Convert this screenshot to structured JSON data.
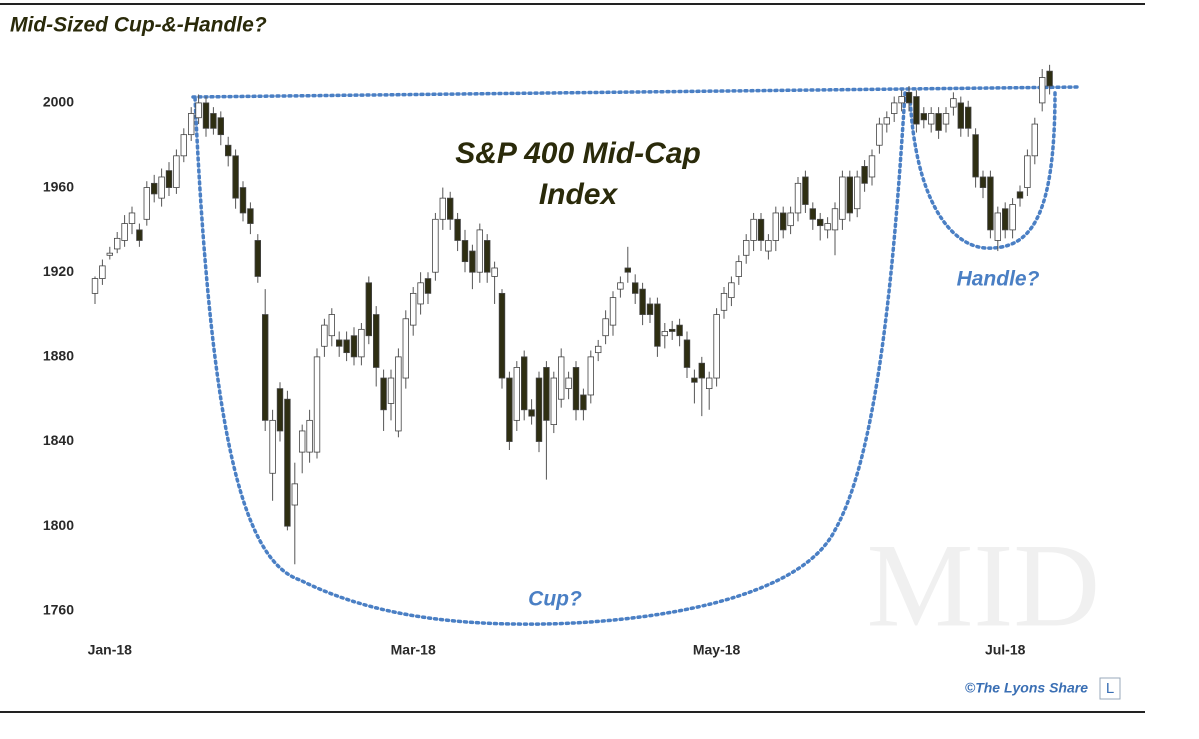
{
  "chart_data": {
    "type": "candlestick",
    "title": "Mid-Sized Cup-&-Handle?",
    "chart_label": [
      "S&P 400 Mid-Cap",
      "Index"
    ],
    "annotations": [
      "Cup?",
      "Handle?"
    ],
    "watermark": "MID",
    "credit": "©The Lyons Share",
    "logo": "L",
    "categories": [
      null,
      null,
      "Jan-18",
      null,
      null,
      null,
      null,
      null,
      null,
      null,
      null,
      null,
      null,
      null,
      null,
      null,
      null,
      null,
      null,
      null,
      null,
      null,
      null,
      null,
      null,
      null,
      null,
      null,
      null,
      null,
      null,
      null,
      null,
      null,
      null,
      null,
      null,
      null,
      null,
      null,
      null,
      null,
      null,
      "Mar-18",
      null,
      null,
      null,
      null,
      null,
      null,
      null,
      null,
      null,
      null,
      null,
      null,
      null,
      null,
      null,
      null,
      null,
      null,
      null,
      null,
      null,
      null,
      null,
      null,
      null,
      null,
      null,
      null,
      null,
      null,
      null,
      null,
      null,
      null,
      null,
      null,
      null,
      null,
      null,
      null,
      "May-18",
      null,
      null,
      null,
      null,
      null,
      null,
      null,
      null,
      null,
      null,
      null,
      null,
      null,
      null,
      null,
      null,
      null,
      null,
      null,
      null,
      null,
      null,
      null,
      null,
      null,
      null,
      null,
      null,
      null,
      null,
      null,
      null,
      null,
      null,
      null,
      null,
      null,
      null,
      "Jul-18",
      null,
      null,
      null,
      null,
      null,
      null
    ],
    "open": [
      1910,
      1917,
      1928,
      1931,
      1935,
      1943,
      1940,
      1945,
      1962,
      1955,
      1968,
      1960,
      1975,
      1985,
      1993,
      2000,
      1995,
      1993,
      1980,
      1975,
      1960,
      1950,
      1935,
      1900,
      1825,
      1865,
      1860,
      1810,
      1835,
      1835,
      1835,
      1885,
      1890,
      1888,
      1888,
      1890,
      1880,
      1915,
      1900,
      1870,
      1858,
      1845,
      1870,
      1895,
      1905,
      1917,
      1920,
      1945,
      1955,
      1945,
      1935,
      1930,
      1920,
      1935,
      1918,
      1910,
      1870,
      1850,
      1880,
      1855,
      1870,
      1875,
      1848,
      1860,
      1865,
      1875,
      1862,
      1862,
      1882,
      1890,
      1895,
      1912,
      1922,
      1915,
      1912,
      1905,
      1905,
      1890,
      1893,
      1895,
      1888,
      1870,
      1877,
      1865,
      1870,
      1902,
      1908,
      1918,
      1928,
      1935,
      1945,
      1930,
      1935,
      1948,
      1942,
      1948,
      1965,
      1950,
      1945,
      1940,
      1940,
      1945,
      1965,
      1950,
      1970,
      1965,
      1980,
      1990,
      1995,
      2000,
      2005,
      2003,
      1995,
      1990,
      1995,
      1990,
      1998,
      2000,
      1998,
      1985,
      1965,
      1965,
      1935,
      1950,
      1940,
      1958,
      1960,
      1975,
      2000,
      2015
    ],
    "high": [
      1918,
      1926,
      1932,
      1939,
      1947,
      1951,
      1943,
      1963,
      1966,
      1969,
      1972,
      1978,
      1988,
      1998,
      2004,
      2003,
      1998,
      1996,
      1984,
      1978,
      1963,
      1953,
      1938,
      1912,
      1855,
      1868,
      1864,
      1830,
      1848,
      1855,
      1884,
      1898,
      1903,
      1892,
      1892,
      1894,
      1896,
      1918,
      1904,
      1874,
      1874,
      1884,
      1902,
      1913,
      1920,
      1920,
      1948,
      1960,
      1958,
      1948,
      1940,
      1933,
      1943,
      1938,
      1925,
      1912,
      1873,
      1878,
      1883,
      1860,
      1873,
      1878,
      1873,
      1884,
      1873,
      1878,
      1865,
      1883,
      1888,
      1902,
      1911,
      1918,
      1932,
      1919,
      1915,
      1908,
      1908,
      1896,
      1897,
      1898,
      1892,
      1874,
      1880,
      1873,
      1903,
      1913,
      1918,
      1928,
      1938,
      1948,
      1948,
      1938,
      1951,
      1951,
      1951,
      1965,
      1968,
      1953,
      1948,
      1946,
      1953,
      1968,
      1968,
      1968,
      1973,
      1978,
      1993,
      1996,
      2003,
      2006,
      2008,
      2006,
      1998,
      1998,
      1998,
      1998,
      2005,
      2003,
      2001,
      1988,
      1968,
      1968,
      1951,
      1953,
      1955,
      1961,
      1978,
      1993,
      2016,
      2018
    ],
    "low": [
      1905,
      1914,
      1926,
      1929,
      1932,
      1938,
      1932,
      1942,
      1953,
      1951,
      1956,
      1957,
      1972,
      1982,
      1990,
      1984,
      1985,
      1980,
      1970,
      1950,
      1944,
      1938,
      1915,
      1845,
      1812,
      1840,
      1798,
      1782,
      1825,
      1830,
      1832,
      1880,
      1885,
      1880,
      1878,
      1876,
      1876,
      1886,
      1866,
      1845,
      1850,
      1842,
      1865,
      1890,
      1900,
      1905,
      1916,
      1940,
      1940,
      1930,
      1920,
      1912,
      1915,
      1915,
      1905,
      1865,
      1836,
      1845,
      1850,
      1848,
      1835,
      1822,
      1844,
      1856,
      1860,
      1850,
      1850,
      1858,
      1878,
      1886,
      1890,
      1908,
      1915,
      1905,
      1895,
      1896,
      1880,
      1884,
      1888,
      1885,
      1870,
      1858,
      1852,
      1855,
      1866,
      1898,
      1904,
      1914,
      1924,
      1930,
      1930,
      1926,
      1930,
      1936,
      1938,
      1944,
      1948,
      1940,
      1935,
      1936,
      1928,
      1940,
      1944,
      1946,
      1958,
      1961,
      1976,
      1986,
      1991,
      1996,
      1996,
      1986,
      1988,
      1986,
      1983,
      1986,
      1994,
      1984,
      1984,
      1960,
      1955,
      1936,
      1930,
      1936,
      1936,
      1951,
      1956,
      1971,
      1996,
      2004
    ],
    "close": [
      1917,
      1923,
      1929,
      1936,
      1943,
      1948,
      1935,
      1960,
      1957,
      1965,
      1960,
      1975,
      1985,
      1995,
      2000,
      1988,
      1988,
      1985,
      1975,
      1955,
      1948,
      1943,
      1918,
      1850,
      1850,
      1845,
      1800,
      1820,
      1845,
      1850,
      1880,
      1895,
      1900,
      1885,
      1882,
      1880,
      1893,
      1890,
      1875,
      1855,
      1870,
      1880,
      1898,
      1910,
      1915,
      1910,
      1945,
      1955,
      1945,
      1935,
      1925,
      1920,
      1940,
      1920,
      1922,
      1870,
      1840,
      1875,
      1855,
      1852,
      1840,
      1850,
      1870,
      1880,
      1870,
      1855,
      1855,
      1880,
      1885,
      1898,
      1908,
      1915,
      1920,
      1910,
      1900,
      1900,
      1885,
      1892,
      1892,
      1890,
      1875,
      1868,
      1870,
      1870,
      1900,
      1910,
      1915,
      1925,
      1935,
      1945,
      1935,
      1935,
      1948,
      1940,
      1948,
      1962,
      1952,
      1945,
      1942,
      1943,
      1950,
      1965,
      1948,
      1965,
      1962,
      1975,
      1990,
      1993,
      2000,
      2003,
      2000,
      1990,
      1992,
      1995,
      1987,
      1995,
      2002,
      1988,
      1988,
      1965,
      1960,
      1940,
      1948,
      1940,
      1952,
      1955,
      1975,
      1990,
      2012,
      2008
    ],
    "up_color": "#ffffff",
    "down_color": "#2e2e12",
    "ylim": [
      1750,
      2025
    ],
    "yticks": [
      1760,
      1800,
      1840,
      1880,
      1920,
      1960,
      2000
    ],
    "grid": false
  }
}
